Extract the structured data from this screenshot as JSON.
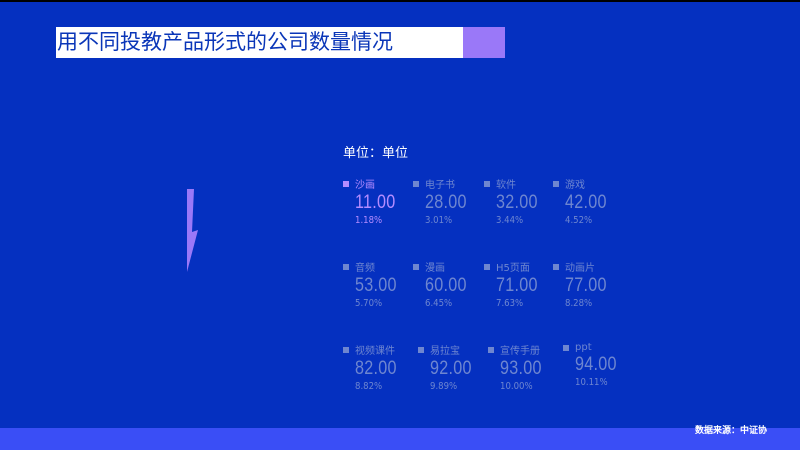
{
  "title": "用不同投教产品形式的公司数量情况",
  "unit_label": "单位：单位",
  "source": "数据来源：中证协",
  "colors": {
    "background": "#0530c0",
    "accent": "#9a78f8",
    "active": "#b48cff",
    "inactive": "#6e86d0"
  },
  "items": [
    {
      "label": "沙画",
      "value": "11.00",
      "percent": "1.18%",
      "active": true
    },
    {
      "label": "电子书",
      "value": "28.00",
      "percent": "3.01%"
    },
    {
      "label": "软件",
      "value": "32.00",
      "percent": "3.44%"
    },
    {
      "label": "游戏",
      "value": "42.00",
      "percent": "4.52%"
    },
    {
      "label": "音频",
      "value": "53.00",
      "percent": "5.70%"
    },
    {
      "label": "漫画",
      "value": "60.00",
      "percent": "6.45%"
    },
    {
      "label": "H5页面",
      "value": "71.00",
      "percent": "7.63%"
    },
    {
      "label": "动画片",
      "value": "77.00",
      "percent": "8.28%"
    },
    {
      "label": "视频课件",
      "value": "82.00",
      "percent": "8.82%"
    },
    {
      "label": "易拉宝",
      "value": "92.00",
      "percent": "9.89%"
    },
    {
      "label": "宣传手册",
      "value": "93.00",
      "percent": "10.00%"
    },
    {
      "label": "ppt",
      "value": "94.00",
      "percent": "10.11%"
    }
  ]
}
